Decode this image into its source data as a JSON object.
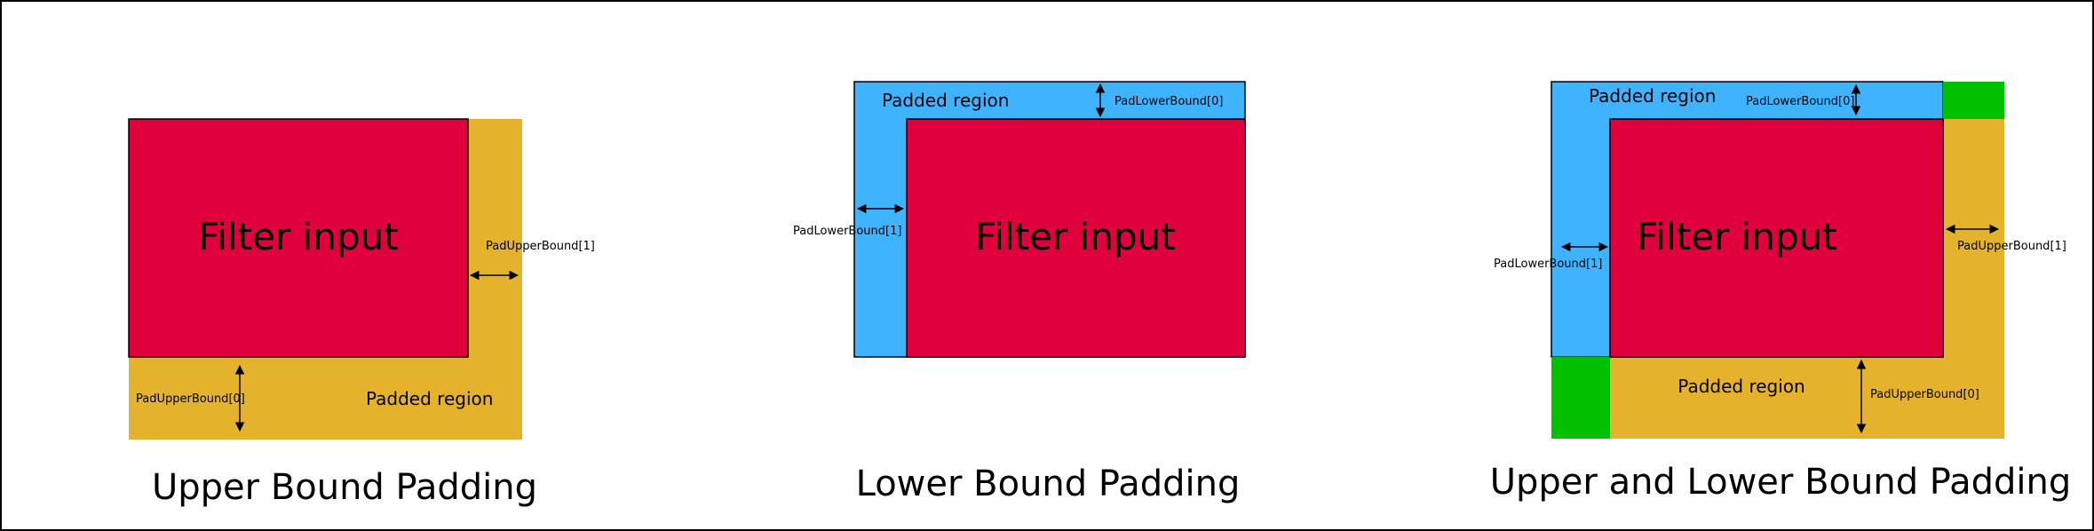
{
  "colors": {
    "filter_input": "#e0003c",
    "upper_padding": "#e5b22b",
    "lower_padding": "#40b3ff",
    "corner": "#00c000",
    "outline": "#000000"
  },
  "panels": {
    "upper": {
      "title": "Upper Bound Padding",
      "filter_label": "Filter input",
      "padded_label": "Padded region",
      "pad_right_label": "PadUpperBound[1]",
      "pad_bottom_label": "PadUpperBound[0]"
    },
    "lower": {
      "title": "Lower Bound Padding",
      "filter_label": "Filter input",
      "padded_label": "Padded region",
      "pad_top_label": "PadLowerBound[0]",
      "pad_left_label": "PadLowerBound[1]"
    },
    "both": {
      "title": "Upper and Lower Bound Padding",
      "filter_label": "Filter input",
      "padded_top_label": "Padded region",
      "padded_bottom_label": "Padded region",
      "pad_top_label": "PadLowerBound[0]",
      "pad_left_label": "PadLowerBound[1]",
      "pad_right_label": "PadUpperBound[1]",
      "pad_bottom_label": "PadUpperBound[0]"
    }
  }
}
